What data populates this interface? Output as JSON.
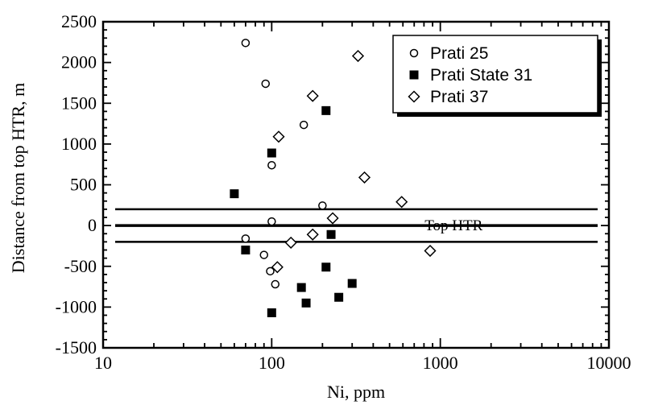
{
  "chart_data": {
    "type": "scatter",
    "title": "",
    "xlabel": "Ni,  ppm",
    "ylabel": "Distance  from  top  HTR,  m",
    "x_scale": "log",
    "xlim": [
      10,
      10000
    ],
    "ylim": [
      -1500,
      2500
    ],
    "x_ticks": [
      10,
      100,
      1000,
      10000
    ],
    "x_tick_labels": [
      "10",
      "100",
      "1000",
      "10000"
    ],
    "y_ticks": [
      -1500,
      -1000,
      -500,
      0,
      500,
      1000,
      1500,
      2000,
      2500
    ],
    "y_tick_labels": [
      "-1500",
      "-1000",
      "-500",
      "0",
      "500",
      "1000",
      "1500",
      "2000",
      "2500"
    ],
    "grid": false,
    "legend_position": "top-right",
    "series": [
      {
        "name": "Prati 25",
        "marker": "circle-open",
        "points": [
          {
            "x": 70,
            "y": 2240
          },
          {
            "x": 92,
            "y": 1740
          },
          {
            "x": 155,
            "y": 1235
          },
          {
            "x": 100,
            "y": 740
          },
          {
            "x": 200,
            "y": 245
          },
          {
            "x": 100,
            "y": 50
          },
          {
            "x": 70,
            "y": -160
          },
          {
            "x": 90,
            "y": -360
          },
          {
            "x": 98,
            "y": -560
          },
          {
            "x": 105,
            "y": -720
          }
        ]
      },
      {
        "name": "Prati State 31",
        "marker": "square-filled",
        "points": [
          {
            "x": 210,
            "y": 1410
          },
          {
            "x": 100,
            "y": 890
          },
          {
            "x": 60,
            "y": 390
          },
          {
            "x": 225,
            "y": -110
          },
          {
            "x": 70,
            "y": -300
          },
          {
            "x": 210,
            "y": -510
          },
          {
            "x": 300,
            "y": -710
          },
          {
            "x": 150,
            "y": -760
          },
          {
            "x": 250,
            "y": -880
          },
          {
            "x": 160,
            "y": -950
          },
          {
            "x": 100,
            "y": -1070
          }
        ]
      },
      {
        "name": "Prati 37",
        "marker": "diamond-open",
        "points": [
          {
            "x": 325,
            "y": 2080
          },
          {
            "x": 175,
            "y": 1590
          },
          {
            "x": 110,
            "y": 1090
          },
          {
            "x": 355,
            "y": 590
          },
          {
            "x": 590,
            "y": 290
          },
          {
            "x": 230,
            "y": 90
          },
          {
            "x": 175,
            "y": -110
          },
          {
            "x": 130,
            "y": -210
          },
          {
            "x": 108,
            "y": -510
          },
          {
            "x": 870,
            "y": -310
          }
        ]
      }
    ],
    "reference_lines": [
      {
        "y": 200
      },
      {
        "y": 0,
        "label": "Top HTR"
      },
      {
        "y": -200
      }
    ]
  },
  "colors": {
    "ink": "#000000",
    "background": "#ffffff"
  }
}
